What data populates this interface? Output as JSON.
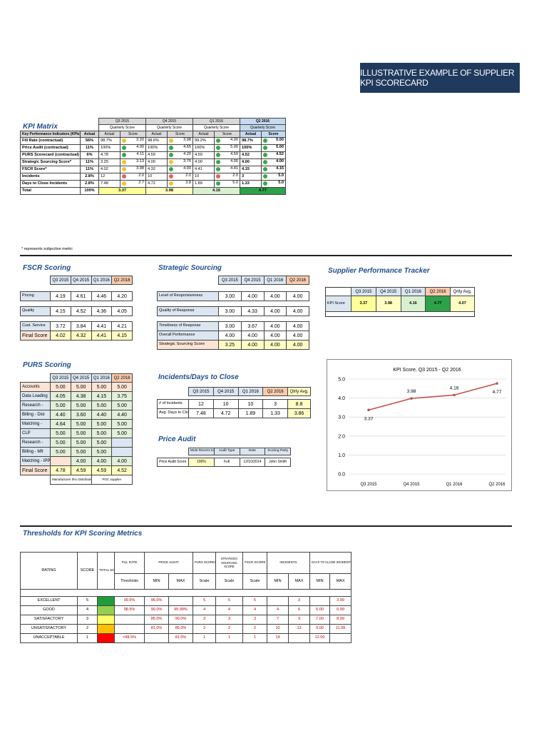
{
  "banner": "ILLUSTRATIVE EXAMPLE OF SUPPLIER KPI SCORECARD",
  "kpi": {
    "title": "KPI Matrix",
    "quarters": [
      "Q3 2015",
      "Q4 2015",
      "Q1 2016",
      "Q2 2016"
    ],
    "sub": "Quarterly Score",
    "col_kpi": "Key Performance Indicators (KPIs)",
    "col_actual": "Actual",
    "col_score": "Score",
    "rows": [
      {
        "name": "Fill Rate (contractual)",
        "target": "56%",
        "q": [
          [
            "98.7%",
            "3.20",
            "y"
          ],
          [
            "98.6%",
            "3.98",
            "y"
          ],
          [
            "99.2%",
            "4.00",
            "g"
          ],
          [
            "98.7%",
            "5.00",
            "g"
          ]
        ]
      },
      {
        "name": "Price Audit (contractual)",
        "target": "11%",
        "q": [
          [
            "100%",
            "4.00",
            "g"
          ],
          [
            "100%",
            "4.65",
            "g"
          ],
          [
            "100%",
            "5.00",
            "g"
          ],
          [
            "100%",
            "5.00",
            "g"
          ]
        ]
      },
      {
        "name": "PURS Scorecard (contractual)",
        "target": "6%",
        "q": [
          [
            "4.78",
            "4.11",
            "g"
          ],
          [
            "4.59",
            "4.20",
            "g"
          ],
          [
            "4.59",
            "4.59",
            "g"
          ],
          [
            "4.52",
            "4.52",
            "g"
          ]
        ]
      },
      {
        "name": "Strategic Sourcing Score*",
        "target": "11%",
        "q": [
          [
            "3.25",
            "3.13",
            "y"
          ],
          [
            "4.00",
            "3.76",
            "y"
          ],
          [
            "4.00",
            "4.00",
            "g"
          ],
          [
            "4.00",
            "4.00",
            "g"
          ]
        ]
      },
      {
        "name": "FSCR Score*",
        "target": "11%",
        "q": [
          [
            "4.02",
            "3.98",
            "y"
          ],
          [
            "4.32",
            "4.00",
            "g"
          ],
          [
            "4.41",
            "4.41",
            "g"
          ],
          [
            "4.15",
            "4.15",
            "g"
          ]
        ]
      },
      {
        "name": "Incidents",
        "target": "2.8%",
        "q": [
          [
            "12",
            "2.0",
            "r"
          ],
          [
            "10",
            "2.0",
            "r"
          ],
          [
            "10",
            "2.0",
            "r"
          ],
          [
            "3",
            "5.0",
            "g"
          ]
        ]
      },
      {
        "name": "Days to Close Incidents",
        "target": "2.8%",
        "q": [
          [
            "7.48",
            "2.7",
            "y"
          ],
          [
            "4.72",
            "3.8",
            "y"
          ],
          [
            "1.89",
            "5.0",
            "g"
          ],
          [
            "1.33",
            "5.0",
            "g"
          ]
        ]
      }
    ],
    "total_label": "Total",
    "total_target": "100%",
    "totals": [
      "3.37",
      "3.98",
      "4.16",
      "4.77"
    ],
    "note": "* represents subjective metric"
  },
  "fscr": {
    "title": "FSCR Scoring",
    "quarters": [
      "Q3 2015",
      "Q4 2015",
      "Q1 2016",
      "Q2 2016"
    ],
    "rows": [
      {
        "name": "Pricing",
        "v": [
          "4.19",
          "4.61",
          "4.46",
          "4.20"
        ]
      },
      {
        "name": "Quality",
        "v": [
          "4.15",
          "4.52",
          "4.36",
          "4.05"
        ]
      },
      {
        "name": "Cust. Service",
        "v": [
          "3.72",
          "3.84",
          "4.41",
          "4.21"
        ]
      }
    ],
    "final_label": "Final Score",
    "final": [
      "4.02",
      "4.32",
      "4.41",
      "4.15"
    ]
  },
  "strategic": {
    "title": "Strategic Sourcing",
    "quarters": [
      "Q3 2015",
      "Q4 2015",
      "Q1 2016",
      "Q2 2016"
    ],
    "rows": [
      {
        "name": "Level of Responsiveness",
        "v": [
          "3.00",
          "4.00",
          "4.00",
          "4.00"
        ]
      },
      {
        "name": "Quality of Response",
        "v": [
          "3.00",
          "4.33",
          "4.00",
          "4.00"
        ]
      },
      {
        "name": "Timeliness of Response",
        "v": [
          "3.00",
          "3.67",
          "4.00",
          "4.00"
        ]
      },
      {
        "name": "Overall Performance",
        "v": [
          "4.00",
          "4.00",
          "4.00",
          "4.00"
        ]
      }
    ],
    "final_label": "Strategic Sourcing Score",
    "final": [
      "3.25",
      "4.00",
      "4.00",
      "4.00"
    ]
  },
  "tracker": {
    "title": "Supplier Performance Tracker",
    "quarters": [
      "Q3 2015",
      "Q4 2015",
      "Q1 2016",
      "Q2 2016"
    ],
    "avg_label": "Qrtly Avg.",
    "row_label": "KPI Score",
    "values": [
      "3.37",
      "3.98",
      "4.16",
      "4.77"
    ],
    "avg": "4.07"
  },
  "purs": {
    "title": "PURS Scoring",
    "quarters": [
      "Q3 2015",
      "Q4 2015",
      "Q1 2016",
      "Q2 2016"
    ],
    "rows": [
      {
        "name": "Accounts",
        "v": [
          "5.00",
          "5.00",
          "5.00",
          "5.00"
        ]
      },
      {
        "name": "Data Loading",
        "v": [
          "4.05",
          "4.38",
          "4.15",
          "3.75"
        ]
      },
      {
        "name": "Research -",
        "v": [
          "5.00",
          "5.00",
          "5.00",
          "5.00"
        ]
      },
      {
        "name": "Billing - Dist",
        "v": [
          "4.40",
          "3.60",
          "4.40",
          "4.40"
        ]
      },
      {
        "name": "Matching -",
        "v": [
          "4.64",
          "5.00",
          "5.00",
          "5.00"
        ]
      },
      {
        "name": "CLP",
        "v": [
          "5.00",
          "5.00",
          "5.00",
          "5.00"
        ]
      },
      {
        "name": "Research -",
        "v": [
          "5.00",
          "5.00",
          "5.00",
          ""
        ]
      },
      {
        "name": "Billing - Mfr",
        "v": [
          "5.00",
          "5.00",
          "5.00",
          ""
        ]
      },
      {
        "name": "Matching - IPP",
        "v": [
          "",
          "4.00",
          "4.00",
          "4.00"
        ]
      }
    ],
    "final_label": "Final Score",
    "final": [
      "4.78",
      "4.59",
      "4.59",
      "4.52"
    ],
    "foot_left": "Manufacturer thru Distribution",
    "foot_right": "POC supplier"
  },
  "incidents": {
    "title": "Incidents/Days to Close",
    "quarters": [
      "Q3 2015",
      "Q4 2015",
      "Q1 2016",
      "Q2 2016"
    ],
    "avg_label": "Qtrly Avg.",
    "rows": [
      {
        "name": "# of Incidents",
        "v": [
          "12",
          "10",
          "10",
          "3"
        ],
        "avg": "8.8"
      },
      {
        "name": "Avg. Days to Close",
        "v": [
          "7.48",
          "4.72",
          "1.89",
          "1.33"
        ],
        "avg": "3.86"
      }
    ]
  },
  "price_audit": {
    "title": "Price Audit",
    "headers": [
      "Most Recent Score",
      "Audit Type",
      "Date",
      "Scoring Party"
    ],
    "row_label": "Price Audit Score",
    "values": [
      "100%",
      "Full",
      "12/10/2014",
      "John Smith"
    ]
  },
  "chart_data": {
    "type": "line",
    "title": "KPI Score, Q3 2015 - Q2 2016",
    "categories": [
      "Q3 2015",
      "Q4 2015",
      "Q1 2016",
      "Q2 2016"
    ],
    "values": [
      3.37,
      3.98,
      4.16,
      4.77
    ],
    "labels": [
      "3.37",
      "3.98",
      "4.16",
      "4.77"
    ],
    "ylim": [
      0,
      5
    ],
    "yticks": [
      "0.0",
      "1.0",
      "2.0",
      "3.0",
      "4.0",
      "5.0"
    ],
    "grid": true,
    "color": "#c0504d"
  },
  "thresholds": {
    "title": "Thresholds for KPI Scoring Metrics",
    "headers": {
      "rating": "RATING",
      "score": "SCORE",
      "total": "TOTAL SCORE",
      "fill": "FILL RATE",
      "price": "PRICE AUDIT",
      "purs": "PURS SCORECARD",
      "strat1": "STRATEGIC",
      "strat2": "SOURCING SCORE",
      "fscr": "FSCR SCORE",
      "inc": "INCIDENTS",
      "days": "DAYS TO CLOSE INCIDENTS"
    },
    "sub": [
      "Thresholds",
      "MIN",
      "MAX",
      "Scale",
      "Scale",
      "Scale",
      "MIN",
      "MAX",
      "MIN",
      "MAX"
    ],
    "rows": [
      {
        "rating": "EXCELLENT",
        "score": "5",
        "fill": "99.5%",
        "pmin": "96.0%",
        "pmax": "",
        "purs": "5",
        "strat": "5",
        "fscr": "5",
        "imin": "",
        "imax": "3",
        "dmin": "",
        "dmax": "3.99"
      },
      {
        "rating": "GOOD",
        "score": "4",
        "fill": "98.5%",
        "pmin": "90.0%",
        "pmax": "95.99%",
        "purs": "4",
        "strat": "4",
        "fscr": "4",
        "imin": "4",
        "imax": "6",
        "dmin": "5.00",
        "dmax": "6.99"
      },
      {
        "rating": "SATISFACTORY",
        "score": "3",
        "fill": "",
        "pmin": "85.0%",
        "pmax": "90.0%",
        "purs": "3",
        "strat": "3",
        "fscr": "3",
        "imin": "7",
        "imax": "9",
        "dmin": "7.00",
        "dmax": "8.99"
      },
      {
        "rating": "UNSATISFACTORY",
        "score": "2",
        "fill": "",
        "pmin": "81.0%",
        "pmax": "85.0%",
        "purs": "2",
        "strat": "2",
        "fscr": "2",
        "imin": "10",
        "imax": "13",
        "dmin": "9.00",
        "dmax": "11.99"
      },
      {
        "rating": "UNACCEPTABLE",
        "score": "1",
        "fill": "<98.5%",
        "pmin": "",
        "pmax": "81.0%",
        "purs": "1",
        "strat": "1",
        "fscr": "1",
        "imin": "14",
        "imax": "",
        "dmin": "12.00",
        "dmax": ""
      }
    ]
  }
}
